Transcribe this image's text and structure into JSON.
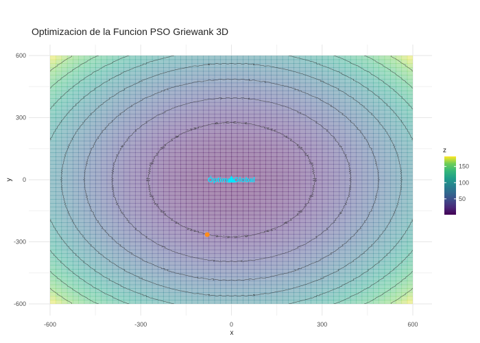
{
  "chart_data": {
    "type": "heatmap",
    "title": "Optimizacion de la Funcion PSO Griewank 3D",
    "xlabel": "x",
    "ylabel": "y",
    "xlim": [
      -600,
      600
    ],
    "ylim": [
      -600,
      600
    ],
    "x_ticks": [
      -600,
      -300,
      0,
      300,
      600
    ],
    "y_ticks": [
      -600,
      -300,
      0,
      300,
      600
    ],
    "grid": true,
    "colorscale": "viridis",
    "colorbar": {
      "title": "z",
      "range": [
        1,
        181
      ],
      "ticks": [
        50,
        100,
        150
      ]
    },
    "contour_levels": [
      20,
      40,
      60,
      80,
      100,
      120,
      140,
      160
    ],
    "points": [
      {
        "name": "optimum",
        "x": 0,
        "y": 0,
        "color": "#00e5ff",
        "marker": "triangle"
      },
      {
        "name": "pso-best",
        "x": -80,
        "y": -265,
        "color": "#ff8c1a",
        "marker": "circle"
      }
    ],
    "annotations": [
      {
        "text": "Óptimo Global",
        "x": 0,
        "y": 0
      }
    ],
    "legend_position": "right"
  }
}
